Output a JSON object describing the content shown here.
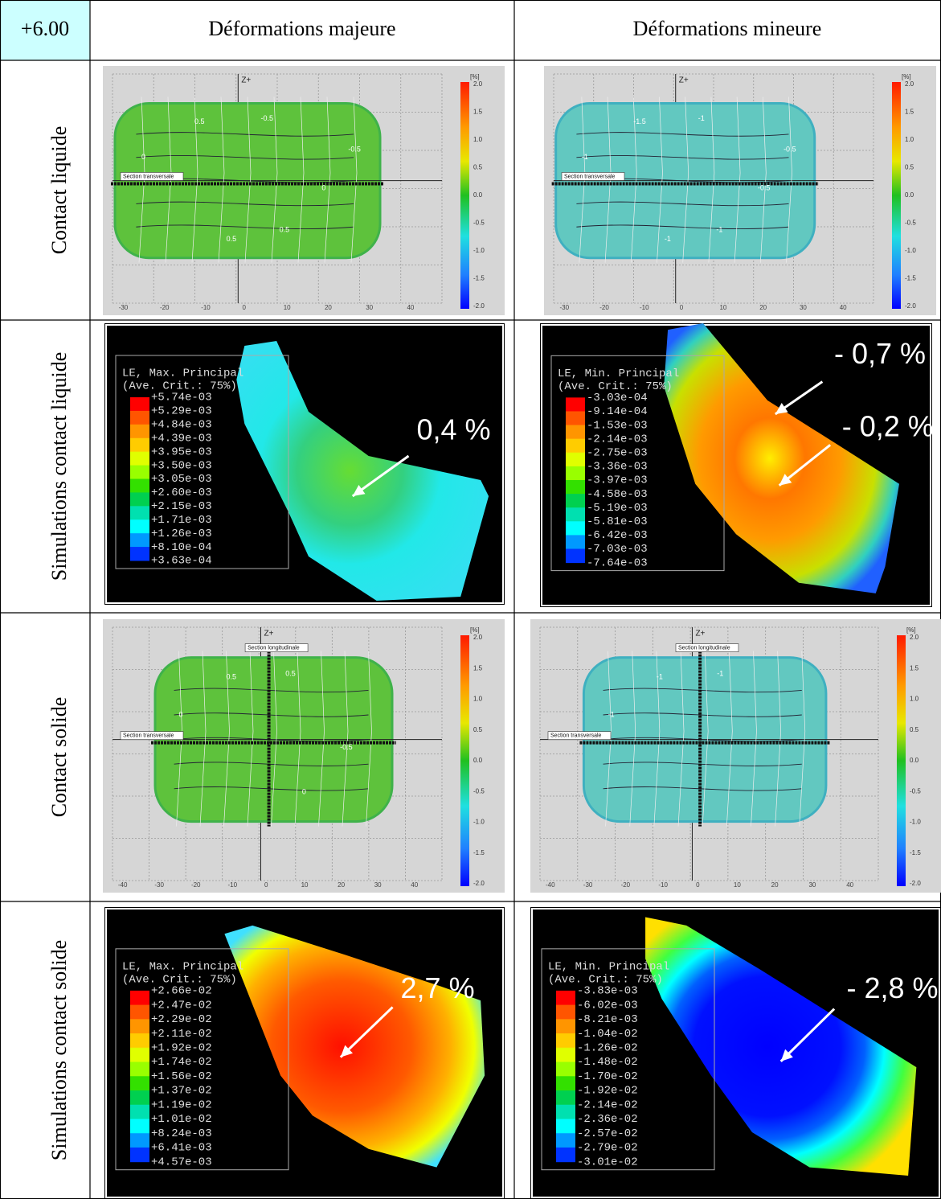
{
  "table": {
    "corner": "+6.00",
    "columns": [
      "Déformations majeure",
      "Déformations  mineure"
    ],
    "rows": [
      {
        "label": "Contact liquide",
        "cells": [
          {
            "axis_label": "Z+",
            "unit": "[%]",
            "scale": [
              "2.0",
              "1.5",
              "1.0",
              "0.5",
              "0.0",
              "-0.5",
              "-1.0",
              "-1.5",
              "-2.0"
            ],
            "x_ticks": [
              "-30",
              "-20",
              "-10",
              "0",
              "10",
              "20",
              "30",
              "40"
            ],
            "sections": [
              "Section transversale"
            ],
            "contours": [
              "0.5",
              "-0.5",
              "0",
              "0",
              "0.5",
              "0.5",
              "-0.5"
            ]
          },
          {
            "axis_label": "Z+",
            "unit": "[%]",
            "scale": [
              "2.0",
              "1.5",
              "1.0",
              "0.5",
              "0.0",
              "-0.5",
              "-1.0",
              "-1.5",
              "-2.0"
            ],
            "x_ticks": [
              "-30",
              "-20",
              "-10",
              "0",
              "10",
              "20",
              "30",
              "40"
            ],
            "sections": [
              "Section transversale"
            ],
            "contours": [
              "-1.5",
              "-1",
              "-1",
              "-0.5",
              "-1",
              "-1",
              "-0.5"
            ]
          }
        ]
      },
      {
        "label": "Simulations contact liquide",
        "cells": [
          {
            "legend_title": "LE, Max. Principal",
            "legend_subtitle": "(Ave. Crit.: 75%)",
            "legend_values": [
              "+5.74e-03",
              "+5.29e-03",
              "+4.84e-03",
              "+4.39e-03",
              "+3.95e-03",
              "+3.50e-03",
              "+3.05e-03",
              "+2.60e-03",
              "+2.15e-03",
              "+1.71e-03",
              "+1.26e-03",
              "+8.10e-04",
              "+3.63e-04"
            ],
            "annotations": [
              "0,4 %"
            ]
          },
          {
            "legend_title": "LE, Min. Principal",
            "legend_subtitle": "(Ave. Crit.: 75%)",
            "legend_values": [
              "-3.03e-04",
              "-9.14e-04",
              "-1.53e-03",
              "-2.14e-03",
              "-2.75e-03",
              "-3.36e-03",
              "-3.97e-03",
              "-4.58e-03",
              "-5.19e-03",
              "-5.81e-03",
              "-6.42e-03",
              "-7.03e-03",
              "-7.64e-03"
            ],
            "annotations": [
              "- 0,7 %",
              "- 0,2 %"
            ]
          }
        ]
      },
      {
        "label": "Contact solide",
        "cells": [
          {
            "axis_label": "Z+",
            "unit": "[%]",
            "scale": [
              "2.0",
              "1.5",
              "1.0",
              "0.5",
              "0.0",
              "-0.5",
              "-1.0",
              "-1.5",
              "-2.0"
            ],
            "x_ticks": [
              "-40",
              "-30",
              "-20",
              "-10",
              "0",
              "10",
              "20",
              "30",
              "40"
            ],
            "sections": [
              "Section longitudinale",
              "Section transversale"
            ],
            "contours": [
              "0.5",
              "0.5",
              "0",
              "-0.5",
              "0"
            ]
          },
          {
            "axis_label": "Z+",
            "unit": "[%]",
            "scale": [
              "2.0",
              "1.5",
              "1.0",
              "0.5",
              "0.0",
              "-0.5",
              "-1.0",
              "-1.5",
              "-2.0"
            ],
            "x_ticks": [
              "-40",
              "-30",
              "-20",
              "-10",
              "0",
              "10",
              "20",
              "30",
              "40"
            ],
            "sections": [
              "Section longitudinale",
              "Section transversale"
            ],
            "contours": [
              "-1",
              "-1",
              "-1"
            ]
          }
        ]
      },
      {
        "label": "Simulations contact solide",
        "cells": [
          {
            "legend_title": "LE, Max. Principal",
            "legend_subtitle": "(Ave. Crit.: 75%)",
            "legend_values": [
              "+2.66e-02",
              "+2.47e-02",
              "+2.29e-02",
              "+2.11e-02",
              "+1.92e-02",
              "+1.74e-02",
              "+1.56e-02",
              "+1.37e-02",
              "+1.19e-02",
              "+1.01e-02",
              "+8.24e-03",
              "+6.41e-03",
              "+4.57e-03"
            ],
            "annotations": [
              "2,7 %"
            ]
          },
          {
            "legend_title": "LE, Min. Principal",
            "legend_subtitle": "(Ave. Crit.: 75%)",
            "legend_values": [
              "-3.83e-03",
              "-6.02e-03",
              "-8.21e-03",
              "-1.04e-02",
              "-1.26e-02",
              "-1.48e-02",
              "-1.70e-02",
              "-1.92e-02",
              "-2.14e-02",
              "-2.36e-02",
              "-2.57e-02",
              "-2.79e-02",
              "-3.01e-02"
            ],
            "annotations": [
              "- 2,8 %"
            ]
          }
        ]
      }
    ]
  }
}
